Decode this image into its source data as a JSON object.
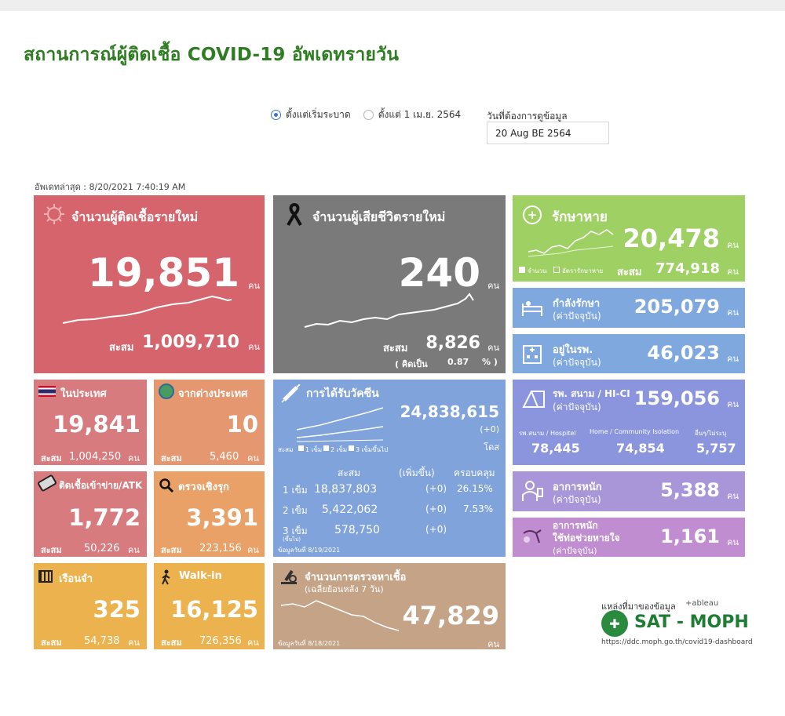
{
  "title": "สถานการณ์ผู้ติดเชื้อ COVID-19 อัพเดทรายวัน",
  "filters": {
    "option1": "ตั้งแต่เริ่มระบาด",
    "option2": "ตั้งแต่ 1 เม.ย. 2564",
    "selected": "option1",
    "date_label": "วันที่ต้องการดูข้อมูล",
    "date_value": "20 Aug BE 2564"
  },
  "updated": "อัพเดทล่าสุด : 8/20/2021 7:40:19 AM",
  "unit": "คน",
  "cum_label": "สะสม",
  "new_cases": {
    "label": "จำนวนผู้ติดเชื้อรายใหม่",
    "value": "19,851",
    "cum": "1,009,710"
  },
  "deaths": {
    "label": "จำนวนผู้เสียชีวิตรายใหม่",
    "value": "240",
    "cum": "8,826",
    "pct_prefix": "( คิดเป็น",
    "pct_value": "0.87",
    "pct_suffix": "% )"
  },
  "recovered": {
    "label": "รักษาหาย",
    "value": "20,478",
    "cum": "774,918",
    "legend1": "จำนวน",
    "legend2": "อัตรารักษาหาย"
  },
  "treating": {
    "label": "กำลังรักษา",
    "sub": "(ค่าปัจจุบัน)",
    "value": "205,079"
  },
  "hospital": {
    "label": "อยู่ในรพ.",
    "sub": "(ค่าปัจจุบัน)",
    "value": "46,023"
  },
  "field": {
    "label": "รพ. สนาม / HI-CI",
    "sub": "(ค่าปัจจุบัน)",
    "value": "159,056",
    "c1_label": "รพ.สนาม / Hospitel",
    "c1_value": "78,445",
    "c2_label": "Home / Community Isolation",
    "c2_value": "74,854",
    "c3_label": "อื่นๆ/ไม่ระบุ",
    "c3_value": "5,757"
  },
  "severe": {
    "label": "อาการหนัก",
    "sub": "(ค่าปัจจุบัน)",
    "value": "5,388"
  },
  "ventilator": {
    "label": "อาการหนัก",
    "label2": "ใช้ท่อช่วยหายใจ",
    "sub": "(ค่าปัจจุบัน)",
    "value": "1,161"
  },
  "domestic": {
    "label": "ในประเทศ",
    "value": "19,841",
    "cum": "1,004,250"
  },
  "abroad": {
    "label": "จากต่างประเทศ",
    "value": "10",
    "cum": "5,460"
  },
  "prison_atk": {
    "label": "ติดเชื้อเข้าข่าย/ATK",
    "value": "1,772",
    "cum": "50,226"
  },
  "active": {
    "label": "ตรวจเชิงรุก",
    "value": "3,391",
    "cum": "223,156"
  },
  "prison": {
    "label": "เรือนจำ",
    "value": "325",
    "cum": "54,738"
  },
  "walkin": {
    "label": "Walk-in",
    "value": "16,125",
    "cum": "726,356"
  },
  "vaccine": {
    "label": "การได้รับวัคซีน",
    "total": "24,838,615",
    "delta": "(+0)",
    "unit": "โดส",
    "legend_prefix": "สะสม",
    "legend": [
      "1 เข็ม",
      "2 เข็ม",
      "3 เข็มขึ้นไป"
    ],
    "head_cum": "สะสม",
    "head_inc": "(เพิ่มขึ้น)",
    "head_cov": "ครอบคลุม",
    "rows": [
      {
        "dose": "1 เข็ม",
        "cum": "18,837,803",
        "inc": "(+0)",
        "cov": "26.15%"
      },
      {
        "dose": "2 เข็ม",
        "cum": "5,422,062",
        "inc": "(+0)",
        "cov": "7.53%"
      },
      {
        "dose": "3 เข็ม",
        "cum": "578,750",
        "inc": "(+0)",
        "cov": ""
      }
    ],
    "dose3_note": "(ขึ้นไป)",
    "asof": "ข้อมูลวันที่ 8/19/2021"
  },
  "tests": {
    "label": "จำนวนการตรวจหาเชื้อ",
    "sub": "(เฉลี่ยย้อนหลัง 7 วัน)",
    "value": "47,829",
    "unit": "คน",
    "asof": "ข้อมูลวันที่ 8/18/2021"
  },
  "source": {
    "label": "แหล่งที่มาของข้อมูล",
    "tableau": "+ableau",
    "brand": "SAT - MOPH",
    "url": "https://ddc.moph.go.th/covid19-dashboard"
  },
  "colors": {
    "title_green": "#2f7d22",
    "red": "#d5646c",
    "grey": "#7a7a7a",
    "green": "#9fd063",
    "blue": "#7ea8de"
  }
}
